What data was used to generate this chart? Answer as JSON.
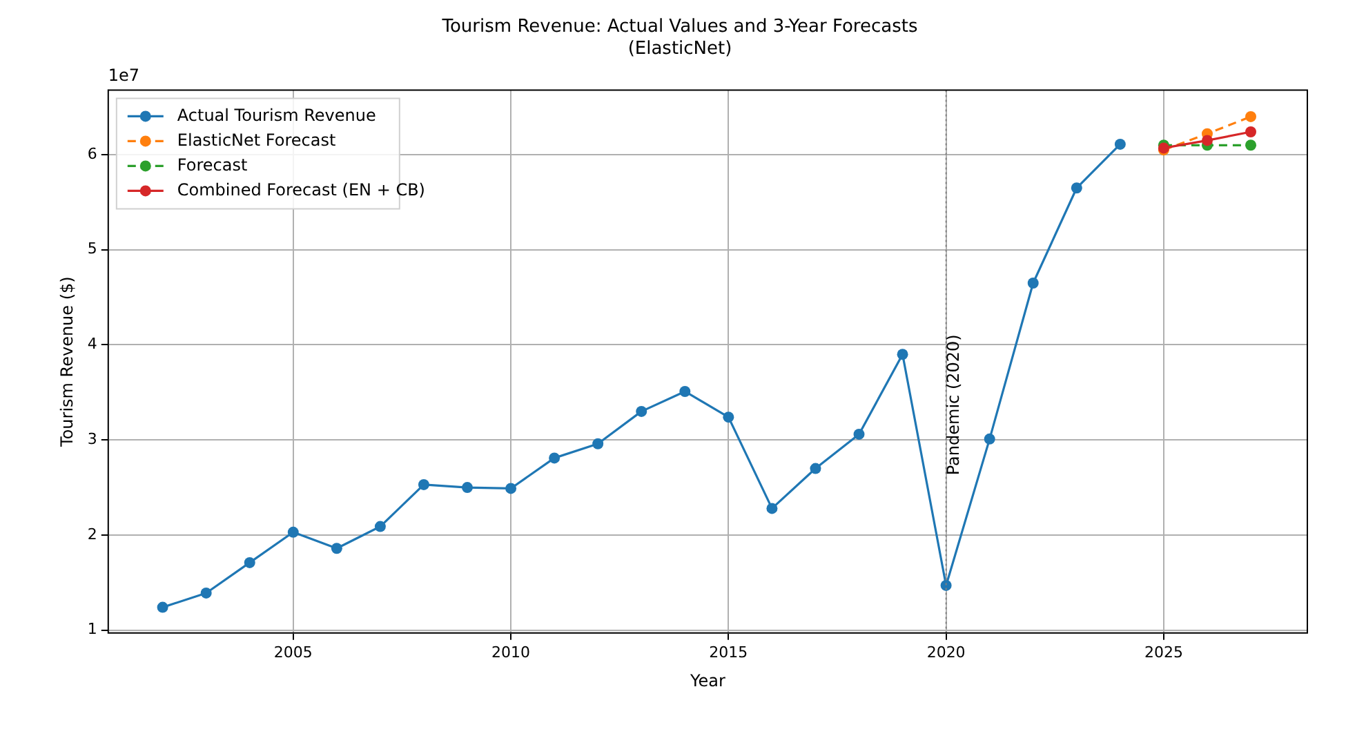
{
  "chart_data": {
    "type": "line",
    "title": [
      "Tourism Revenue: Actual Values and 3-Year Forecasts",
      "(ElasticNet)"
    ],
    "xlabel": "Year",
    "ylabel": "Tourism Revenue ($)",
    "annotations": [
      "1e7"
    ],
    "xlim": [
      2000.75,
      2028.3
    ],
    "xticks": [
      2005,
      2010,
      2015,
      2020,
      2025
    ],
    "ylim": [
      0.97,
      6.68
    ],
    "yticks": [
      1,
      2,
      3,
      4,
      5,
      6
    ],
    "grid": true,
    "legend": "top left",
    "marker": "circle",
    "ref_lines": [
      {
        "axis": "x",
        "value": 2020,
        "label": "Pandemic (2020)",
        "color": "#808080",
        "line_style": "dotted"
      }
    ],
    "series": [
      {
        "name": "Actual Tourism Revenue",
        "color": "#1f77b4",
        "line_style": "solid",
        "x": [
          2002,
          2003,
          2004,
          2005,
          2006,
          2007,
          2008,
          2009,
          2010,
          2011,
          2012,
          2013,
          2014,
          2015,
          2016,
          2017,
          2018,
          2019,
          2020,
          2021,
          2022,
          2023,
          2024
        ],
        "values": [
          1.24,
          1.39,
          1.71,
          2.03,
          1.86,
          2.09,
          2.53,
          2.5,
          2.49,
          2.81,
          2.96,
          3.3,
          3.51,
          3.24,
          2.28,
          2.7,
          3.06,
          3.9,
          1.47,
          3.01,
          4.65,
          5.65,
          6.11
        ]
      },
      {
        "name": "ElasticNet Forecast",
        "color": "#ff7f0e",
        "line_style": "dashed",
        "x": [
          2025,
          2026,
          2027
        ],
        "values": [
          6.05,
          6.22,
          6.4
        ]
      },
      {
        "name": "Forecast",
        "color": "#2ca02c",
        "line_style": "dashed",
        "x": [
          2025,
          2026,
          2027
        ],
        "values": [
          6.1,
          6.1,
          6.1
        ]
      },
      {
        "name": "Combined Forecast (EN + CB)",
        "color": "#d62728",
        "line_style": "solid",
        "x": [
          2025,
          2026,
          2027
        ],
        "values": [
          6.07,
          6.15,
          6.24
        ]
      }
    ]
  }
}
